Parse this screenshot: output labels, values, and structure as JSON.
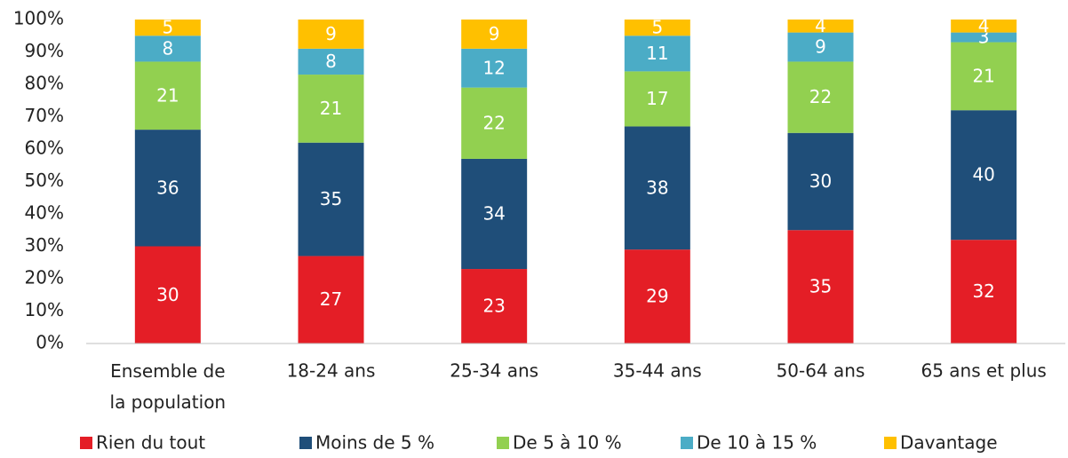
{
  "chart_data": {
    "type": "stacked_bar",
    "categories": [
      "Ensemble de la population",
      "18-24 ans",
      "25-34 ans",
      "35-44 ans",
      "50-64 ans",
      "65 ans et plus"
    ],
    "series": [
      {
        "name": "Rien du tout",
        "color": "#e41e26",
        "values": [
          30,
          27,
          23,
          29,
          35,
          32
        ]
      },
      {
        "name": "Moins de 5 %",
        "color": "#1f4e79",
        "values": [
          36,
          35,
          34,
          38,
          30,
          40
        ]
      },
      {
        "name": "De 5 à 10 %",
        "color": "#92d050",
        "values": [
          21,
          21,
          22,
          17,
          22,
          21
        ]
      },
      {
        "name": "De 10 à 15 %",
        "color": "#4bacc6",
        "values": [
          8,
          8,
          12,
          11,
          9,
          3
        ]
      },
      {
        "name": "Davantage",
        "color": "#ffc000",
        "values": [
          5,
          9,
          9,
          5,
          4,
          4
        ]
      }
    ],
    "ylim": [
      0,
      100
    ],
    "yticks": [
      {
        "value": 0,
        "label": "0%"
      },
      {
        "value": 10,
        "label": "10%"
      },
      {
        "value": 20,
        "label": "20%"
      },
      {
        "value": 30,
        "label": "30%"
      },
      {
        "value": 40,
        "label": "40%"
      },
      {
        "value": 50,
        "label": "50%"
      },
      {
        "value": 60,
        "label": "60%"
      },
      {
        "value": 70,
        "label": "70%"
      },
      {
        "value": 80,
        "label": "80%"
      },
      {
        "value": 90,
        "label": "90%"
      },
      {
        "value": 100,
        "label": "100%"
      }
    ],
    "grid": false,
    "legend": "bottom"
  }
}
